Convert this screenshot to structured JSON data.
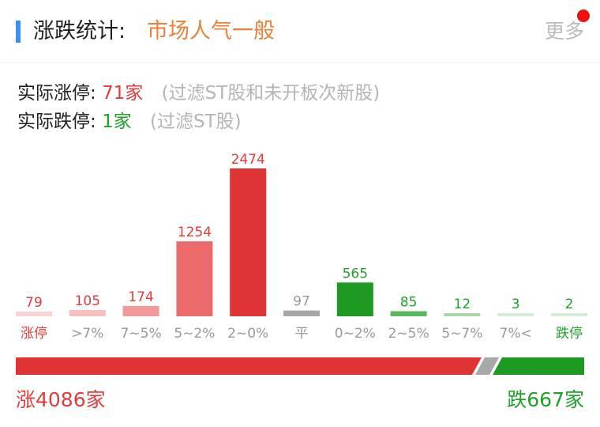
{
  "header": {
    "title": "涨跌统计:",
    "mood": "市场人气一般",
    "more_label": "更多"
  },
  "info": {
    "limit_up_label": "实际涨停:",
    "limit_up_value": "71家",
    "limit_up_note": "(过滤ST股和未开板次新股)",
    "limit_down_label": "实际跌停:",
    "limit_down_value": "1家",
    "limit_down_note": "(过滤ST股)"
  },
  "colors": {
    "up_strong": "#e03333",
    "up_mid": "#ec6a6a",
    "up_light": "#f4a4a4",
    "up_lighter": "#f9d6d6",
    "flat": "#a8a8a8",
    "down_strong": "#1e9a22",
    "down_mid": "#57b85c",
    "down_light": "#a6d8a8",
    "down_lighter": "#d4ecd5",
    "label_up": "#e03c3c",
    "label_down": "#21a02a",
    "label_gray": "#999999"
  },
  "chart_data": {
    "type": "bar",
    "categories": [
      "涨停",
      ">7%",
      "7~5%",
      "5~2%",
      "2~0%",
      "平",
      "0~2%",
      "2~5%",
      "5~7%",
      "7%<",
      "跌停"
    ],
    "values": [
      79,
      105,
      174,
      1254,
      2474,
      97,
      565,
      85,
      12,
      3,
      2
    ],
    "bar_colors": [
      "#f9d6d6",
      "#f6c0c0",
      "#f09a9a",
      "#ec6a6a",
      "#e03333",
      "#a8a8a8",
      "#1e9a22",
      "#57b85c",
      "#a6d8a8",
      "#d4ecd5",
      "#d4ecd5"
    ],
    "value_colors": [
      "#e03c3c",
      "#e03c3c",
      "#e03c3c",
      "#e03c3c",
      "#e03c3c",
      "#999999",
      "#21a02a",
      "#21a02a",
      "#21a02a",
      "#21a02a",
      "#21a02a"
    ],
    "label_colors": [
      "#e03c3c",
      "#999999",
      "#999999",
      "#999999",
      "#999999",
      "#999999",
      "#999999",
      "#999999",
      "#999999",
      "#999999",
      "#21a02a"
    ],
    "up_total": 4086,
    "down_total": 667
  },
  "totals": {
    "up_label": "涨4086家",
    "down_label": "跌667家"
  }
}
